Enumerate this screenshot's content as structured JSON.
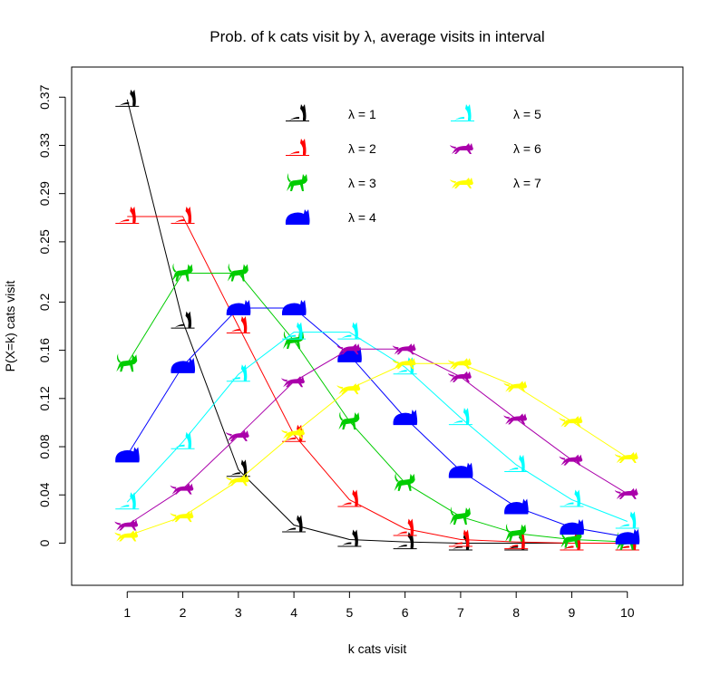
{
  "chart_data": {
    "type": "line",
    "title": "Prob. of k cats visit by λ, average visits in interval",
    "xlabel": "k cats visit",
    "ylabel": "P(X=k) cats visit",
    "x": [
      1,
      2,
      3,
      4,
      5,
      6,
      7,
      8,
      9,
      10
    ],
    "x_ticks": [
      "1",
      "2",
      "3",
      "4",
      "5",
      "6",
      "7",
      "8",
      "9",
      "10"
    ],
    "y_ticks": [
      "0",
      "0.04",
      "0.08",
      "0.12",
      "0.16",
      "0.2",
      "0.25",
      "0.29",
      "0.33",
      "0.37"
    ],
    "ylim": [
      -0.035,
      0.395
    ],
    "xlim": [
      0.0,
      11.0
    ],
    "grid": false,
    "legend_placement": "top",
    "series": [
      {
        "name": "λ = 1",
        "color": "#000000",
        "marker": "cat-sitting-icon",
        "values": [
          0.368,
          0.184,
          0.061,
          0.015,
          0.003,
          0.001,
          0.0,
          0.0,
          0.0,
          0.0
        ]
      },
      {
        "name": "λ = 2",
        "color": "#ff0000",
        "marker": "cat-sitting-icon",
        "values": [
          0.271,
          0.271,
          0.18,
          0.09,
          0.036,
          0.012,
          0.003,
          0.001,
          0.0,
          0.0
        ]
      },
      {
        "name": "λ = 3",
        "color": "#00cc00",
        "marker": "cat-standing-icon",
        "values": [
          0.149,
          0.224,
          0.224,
          0.168,
          0.101,
          0.05,
          0.022,
          0.008,
          0.003,
          0.001
        ]
      },
      {
        "name": "λ = 4",
        "color": "#0000ff",
        "marker": "cat-lying-icon",
        "values": [
          0.073,
          0.147,
          0.195,
          0.195,
          0.156,
          0.104,
          0.06,
          0.03,
          0.013,
          0.005
        ]
      },
      {
        "name": "λ = 5",
        "color": "#00ffff",
        "marker": "cat-sitting-icon",
        "values": [
          0.034,
          0.084,
          0.14,
          0.175,
          0.175,
          0.146,
          0.104,
          0.065,
          0.036,
          0.018
        ]
      },
      {
        "name": "λ = 6",
        "color": "#aa00aa",
        "marker": "cat-walking-icon",
        "values": [
          0.015,
          0.045,
          0.089,
          0.134,
          0.161,
          0.161,
          0.138,
          0.103,
          0.069,
          0.041
        ]
      },
      {
        "name": "λ = 7",
        "color": "#ffff00",
        "marker": "cat-walking-icon",
        "values": [
          0.006,
          0.022,
          0.052,
          0.091,
          0.128,
          0.149,
          0.149,
          0.13,
          0.101,
          0.071
        ]
      }
    ]
  }
}
